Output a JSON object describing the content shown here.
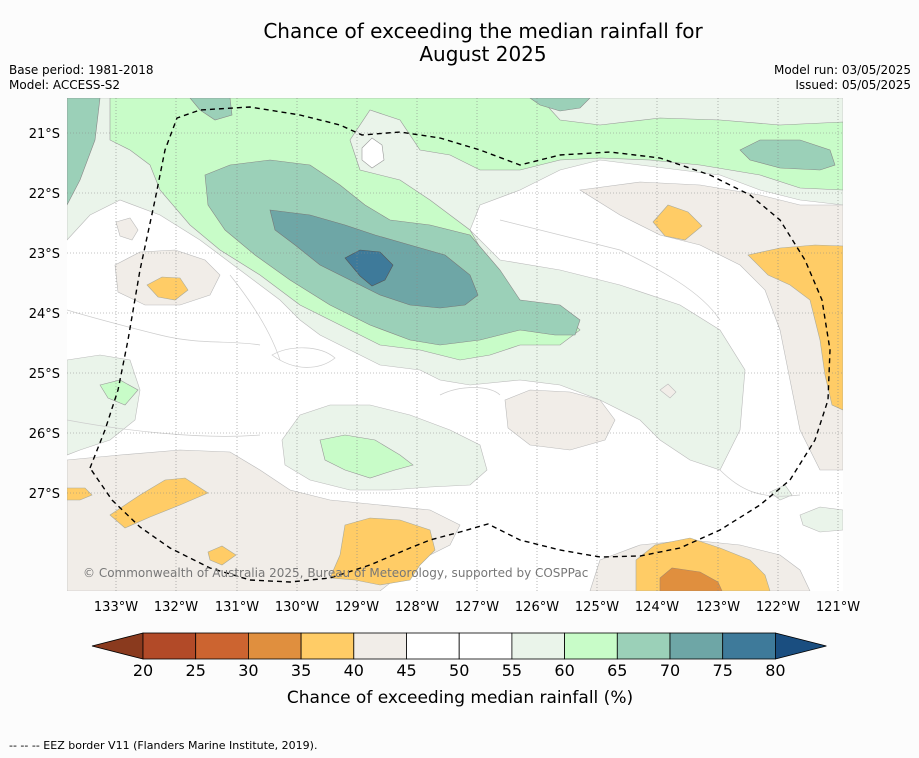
{
  "title_line1": "Chance of exceeding the median rainfall for",
  "title_line2": "August 2025",
  "base_period": "Base period: 1981-2018",
  "model": "Model: ACCESS-S2",
  "model_run": "Model run: 03/05/2025",
  "issued": "Issued: 05/05/2025",
  "copyright": "© Commonwealth of Australia 2025, Bureau of Meteorology, supported by COSPPac",
  "footer": "--  --  -- EEZ border V11 (Flanders Marine Institute, 2019).",
  "x_ticks": [
    "133°W",
    "132°W",
    "131°W",
    "130°W",
    "129°W",
    "128°W",
    "127°W",
    "126°W",
    "125°W",
    "124°W",
    "123°W",
    "122°W",
    "121°W"
  ],
  "y_ticks": [
    "21°S",
    "22°S",
    "23°S",
    "24°S",
    "25°S",
    "26°S",
    "27°S"
  ],
  "colorbar": {
    "title": "Chance of exceeding median rainfall (%)",
    "labels": [
      "20",
      "25",
      "30",
      "35",
      "40",
      "45",
      "50",
      "55",
      "60",
      "65",
      "70",
      "75",
      "80"
    ],
    "colors": [
      "#8a3a1e",
      "#b24a28",
      "#cc6430",
      "#e08f3e",
      "#ffcc66",
      "#f1ede8",
      "#ffffff",
      "#ffffff",
      "#eaf4ea",
      "#c8fcc8",
      "#9bd0b8",
      "#6ea6a6",
      "#3e7a9a",
      "#1a4e80"
    ]
  },
  "colors": {
    "c40": "#ffcc66",
    "c35": "#e08f3e",
    "c45": "#f1ede8",
    "c60": "#eaf4ea",
    "c65": "#c8fcc8",
    "c70": "#9bd0b8",
    "c75": "#6ea6a6",
    "c80": "#3e7a9a"
  }
}
